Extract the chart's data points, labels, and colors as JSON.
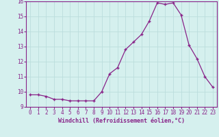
{
  "x": [
    0,
    1,
    2,
    3,
    4,
    5,
    6,
    7,
    8,
    9,
    10,
    11,
    12,
    13,
    14,
    15,
    16,
    17,
    18,
    19,
    20,
    21,
    22,
    23
  ],
  "y": [
    9.8,
    9.8,
    9.7,
    9.5,
    9.5,
    9.4,
    9.4,
    9.4,
    9.4,
    10.0,
    11.2,
    11.6,
    12.8,
    13.3,
    13.8,
    14.7,
    15.9,
    15.8,
    15.9,
    15.1,
    13.1,
    12.2,
    11.0,
    10.3
  ],
  "line_color": "#882288",
  "marker": "+",
  "marker_size": 3,
  "marker_lw": 1.0,
  "xlabel": "Windchill (Refroidissement éolien,°C)",
  "xlim_min": -0.5,
  "xlim_max": 23.5,
  "ylim_min": 9,
  "ylim_max": 16,
  "yticks": [
    9,
    10,
    11,
    12,
    13,
    14,
    15,
    16
  ],
  "xticks": [
    0,
    1,
    2,
    3,
    4,
    5,
    6,
    7,
    8,
    9,
    10,
    11,
    12,
    13,
    14,
    15,
    16,
    17,
    18,
    19,
    20,
    21,
    22,
    23
  ],
  "background_color": "#d5f0ee",
  "grid_color": "#bbdddd",
  "tick_color": "#882288",
  "label_color": "#882288",
  "tick_fontsize": 5.5,
  "xlabel_fontsize": 6.0,
  "linewidth": 0.9
}
